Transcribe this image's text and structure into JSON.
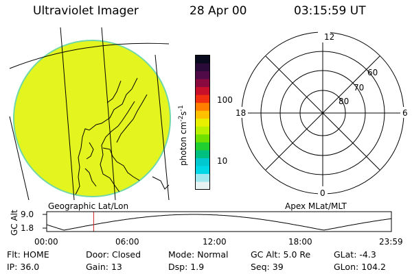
{
  "header": {
    "title": "Ultraviolet Imager",
    "date": "28 Apr 00",
    "time": "03:15:59 UT"
  },
  "colorbar": {
    "label": "photon cm",
    "label_sup1": "-2",
    "label_mid": "s",
    "label_sup2": "-1",
    "scale": "log",
    "ticks": [
      {
        "value": 100,
        "label": "100"
      },
      {
        "value": 10,
        "label": "10"
      }
    ],
    "colors": [
      "#0a0a1e",
      "#2a0a38",
      "#500a48",
      "#8a0a40",
      "#c8102a",
      "#f03010",
      "#ff8000",
      "#ffc000",
      "#e8f000",
      "#b8f000",
      "#70e000",
      "#20d030",
      "#00c080",
      "#00c8d0",
      "#00d8e8",
      "#a0e8f0",
      "#e8f4f4"
    ]
  },
  "left_panel": {
    "label": "Geographic Lat/Lon",
    "disk_color": "#e4f41e",
    "disk_edge": "#70d8a8"
  },
  "right_panel": {
    "label": "Apex MLat/MLT",
    "mlt_labels": {
      "top": "12",
      "bottom": "0",
      "left": "18",
      "right": "6"
    },
    "lat_labels": [
      "60",
      "70",
      "80"
    ]
  },
  "timeline": {
    "axis_label": "GC Alt",
    "y_ticks": [
      "9.0",
      "1.8"
    ],
    "x_ticks": [
      "00:00",
      "06:00",
      "12:00",
      "18:00",
      "23:59"
    ],
    "marker_color": "#d02020",
    "marker_time_hours": 3.27
  },
  "info": {
    "flt_label": "Flt:",
    "flt_value": "HOME",
    "door_label": "Door:",
    "door_value": "Closed",
    "mode_label": "Mode:",
    "mode_value": "Normal",
    "gcalt_label": "GC Alt:",
    "gcalt_value": "5.0 Re",
    "glat_label": "GLat:",
    "glat_value": "-4.3",
    "ip_label": "IP:",
    "ip_value": "36.0",
    "gain_label": "Gain:",
    "gain_value": "13",
    "dsp_label": "Dsp:",
    "dsp_value": "1.9",
    "seq_label": "Seq:",
    "seq_value": "39",
    "glon_label": "GLon:",
    "glon_value": "104.2"
  }
}
